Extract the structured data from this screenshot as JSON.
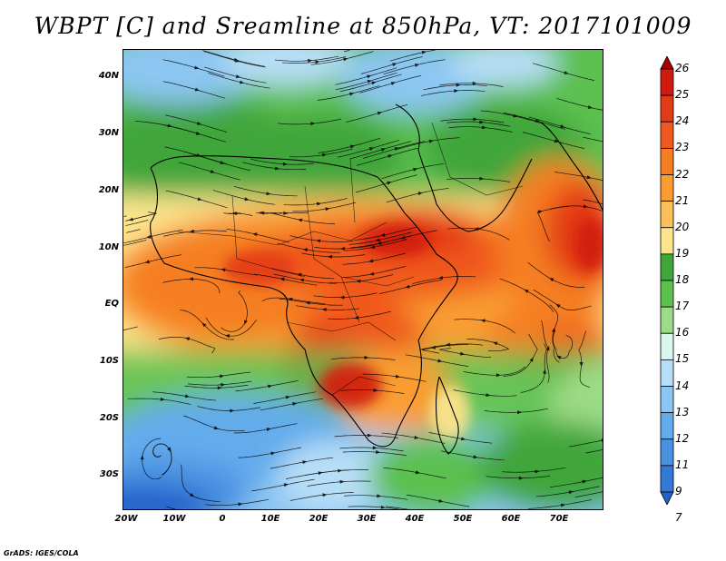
{
  "title": "WBPT [C] and Sreamline at 850hPa, VT: 2017101009",
  "credit": "GrADS: IGES/COLA",
  "map": {
    "lon_range": [
      -20,
      80
    ],
    "lat_range": [
      -36,
      45
    ],
    "lat_ticks": [
      {
        "value": 40,
        "label": "40N"
      },
      {
        "value": 30,
        "label": "30N"
      },
      {
        "value": 20,
        "label": "20N"
      },
      {
        "value": 10,
        "label": "10N"
      },
      {
        "value": 0,
        "label": "EQ"
      },
      {
        "value": -10,
        "label": "10S"
      },
      {
        "value": -20,
        "label": "20S"
      },
      {
        "value": -30,
        "label": "30S"
      }
    ],
    "lon_ticks": [
      {
        "value": -20,
        "label": "20W"
      },
      {
        "value": -10,
        "label": "10W"
      },
      {
        "value": 0,
        "label": "0"
      },
      {
        "value": 10,
        "label": "10E"
      },
      {
        "value": 20,
        "label": "20E"
      },
      {
        "value": 30,
        "label": "30E"
      },
      {
        "value": 40,
        "label": "40E"
      },
      {
        "value": 50,
        "label": "50E"
      },
      {
        "value": 60,
        "label": "60E"
      },
      {
        "value": 70,
        "label": "70E"
      }
    ]
  },
  "colorbar": {
    "levels": [
      {
        "label": "26",
        "color": "#a50000"
      },
      {
        "label": "25",
        "color": "#d11a0e"
      },
      {
        "label": "24",
        "color": "#e33a17"
      },
      {
        "label": "23",
        "color": "#f0591f"
      },
      {
        "label": "22",
        "color": "#f57e24"
      },
      {
        "label": "21",
        "color": "#f99d30"
      },
      {
        "label": "20",
        "color": "#fbc05a"
      },
      {
        "label": "19",
        "color": "#fde58e"
      },
      {
        "label": "18",
        "color": "#3fa63a"
      },
      {
        "label": "17",
        "color": "#5cc04f"
      },
      {
        "label": "16",
        "color": "#9ddb86"
      },
      {
        "label": "15",
        "color": "#d8f6ee"
      },
      {
        "label": "14",
        "color": "#b7def7"
      },
      {
        "label": "13",
        "color": "#8cc6f2"
      },
      {
        "label": "12",
        "color": "#63acec"
      },
      {
        "label": "11",
        "color": "#4992e2"
      },
      {
        "label": "9",
        "color": "#3478d8"
      },
      {
        "label": "7",
        "color": "#2361c9"
      }
    ]
  }
}
